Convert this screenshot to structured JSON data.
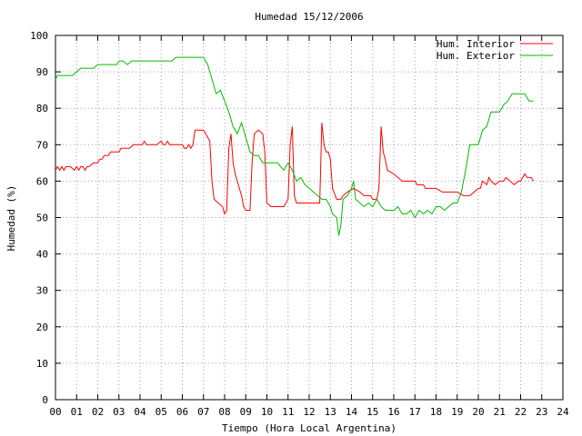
{
  "chart_data": {
    "type": "line",
    "title": "Humedad 15/12/2006",
    "xlabel": "Tiempo (Hora Local Argentina)",
    "ylabel": "Humedad (%)",
    "xlim": [
      0,
      24
    ],
    "ylim": [
      0,
      100
    ],
    "x_ticks": [
      "00",
      "01",
      "02",
      "03",
      "04",
      "05",
      "06",
      "07",
      "08",
      "09",
      "10",
      "11",
      "12",
      "13",
      "14",
      "15",
      "16",
      "17",
      "18",
      "19",
      "20",
      "21",
      "22",
      "23",
      "24"
    ],
    "y_ticks": [
      "0",
      "10",
      "20",
      "30",
      "40",
      "50",
      "60",
      "70",
      "80",
      "90",
      "100"
    ],
    "grid": true,
    "legend_position": "top-right",
    "series": [
      {
        "name": "Hum. Interior",
        "color": "#ff0000",
        "points": [
          [
            0.0,
            63
          ],
          [
            0.1,
            64
          ],
          [
            0.2,
            63
          ],
          [
            0.3,
            64
          ],
          [
            0.4,
            63
          ],
          [
            0.5,
            64
          ],
          [
            0.6,
            64
          ],
          [
            0.7,
            64
          ],
          [
            0.9,
            63
          ],
          [
            1.0,
            64
          ],
          [
            1.1,
            63
          ],
          [
            1.2,
            64
          ],
          [
            1.3,
            64
          ],
          [
            1.4,
            63
          ],
          [
            1.5,
            64
          ],
          [
            1.6,
            64
          ],
          [
            1.8,
            65
          ],
          [
            2.0,
            65
          ],
          [
            2.1,
            66
          ],
          [
            2.2,
            66
          ],
          [
            2.3,
            67
          ],
          [
            2.4,
            67
          ],
          [
            2.5,
            67
          ],
          [
            2.6,
            68
          ],
          [
            2.7,
            68
          ],
          [
            2.9,
            68
          ],
          [
            3.0,
            68
          ],
          [
            3.1,
            69
          ],
          [
            3.2,
            69
          ],
          [
            3.3,
            69
          ],
          [
            3.5,
            69
          ],
          [
            3.7,
            70
          ],
          [
            3.9,
            70
          ],
          [
            4.0,
            70
          ],
          [
            4.1,
            70
          ],
          [
            4.2,
            71
          ],
          [
            4.3,
            70
          ],
          [
            4.4,
            70
          ],
          [
            4.6,
            70
          ],
          [
            4.8,
            70
          ],
          [
            5.0,
            71
          ],
          [
            5.1,
            70
          ],
          [
            5.2,
            70
          ],
          [
            5.3,
            71
          ],
          [
            5.4,
            70
          ],
          [
            5.6,
            70
          ],
          [
            5.8,
            70
          ],
          [
            6.0,
            70
          ],
          [
            6.1,
            69
          ],
          [
            6.2,
            69
          ],
          [
            6.3,
            70
          ],
          [
            6.4,
            69
          ],
          [
            6.5,
            70
          ],
          [
            6.6,
            74
          ],
          [
            7.0,
            74
          ],
          [
            7.1,
            73
          ],
          [
            7.3,
            71
          ],
          [
            7.4,
            60
          ],
          [
            7.5,
            55
          ],
          [
            7.7,
            54
          ],
          [
            7.9,
            53
          ],
          [
            8.0,
            51
          ],
          [
            8.1,
            52
          ],
          [
            8.2,
            69
          ],
          [
            8.3,
            73
          ],
          [
            8.4,
            65
          ],
          [
            8.5,
            62
          ],
          [
            8.6,
            60
          ],
          [
            8.8,
            56
          ],
          [
            8.9,
            53
          ],
          [
            9.0,
            52
          ],
          [
            9.2,
            52
          ],
          [
            9.3,
            65
          ],
          [
            9.4,
            73
          ],
          [
            9.6,
            74
          ],
          [
            9.8,
            73
          ],
          [
            9.9,
            68
          ],
          [
            10.0,
            54
          ],
          [
            10.2,
            53
          ],
          [
            10.4,
            53
          ],
          [
            10.8,
            53
          ],
          [
            11.0,
            55
          ],
          [
            11.1,
            70
          ],
          [
            11.2,
            75
          ],
          [
            11.3,
            56
          ],
          [
            11.4,
            54
          ],
          [
            11.6,
            54
          ],
          [
            12.0,
            54
          ],
          [
            12.4,
            54
          ],
          [
            12.5,
            54
          ],
          [
            12.6,
            76
          ],
          [
            12.7,
            70
          ],
          [
            12.8,
            68
          ],
          [
            12.9,
            68
          ],
          [
            13.0,
            66
          ],
          [
            13.1,
            58
          ],
          [
            13.3,
            55
          ],
          [
            13.5,
            55
          ],
          [
            13.6,
            56
          ],
          [
            13.8,
            57
          ],
          [
            14.1,
            58
          ],
          [
            14.4,
            57
          ],
          [
            14.6,
            56
          ],
          [
            14.9,
            56
          ],
          [
            15.0,
            55
          ],
          [
            15.2,
            55
          ],
          [
            15.3,
            58
          ],
          [
            15.4,
            75
          ],
          [
            15.5,
            68
          ],
          [
            15.6,
            66
          ],
          [
            15.7,
            63
          ],
          [
            16.0,
            62
          ],
          [
            16.2,
            61
          ],
          [
            16.4,
            60
          ],
          [
            17.0,
            60
          ],
          [
            17.1,
            59
          ],
          [
            17.4,
            59
          ],
          [
            17.5,
            58
          ],
          [
            18.0,
            58
          ],
          [
            18.3,
            57
          ],
          [
            19.0,
            57
          ],
          [
            19.3,
            56
          ],
          [
            19.6,
            56
          ],
          [
            19.8,
            57
          ],
          [
            20.0,
            58
          ],
          [
            20.1,
            58
          ],
          [
            20.2,
            60
          ],
          [
            20.4,
            59
          ],
          [
            20.5,
            61
          ],
          [
            20.6,
            60
          ],
          [
            20.8,
            59
          ],
          [
            21.0,
            60
          ],
          [
            21.2,
            60
          ],
          [
            21.3,
            61
          ],
          [
            21.5,
            60
          ],
          [
            21.7,
            59
          ],
          [
            21.9,
            60
          ],
          [
            22.0,
            60
          ],
          [
            22.1,
            61
          ],
          [
            22.2,
            62
          ],
          [
            22.3,
            61
          ],
          [
            22.5,
            61
          ],
          [
            22.6,
            60
          ]
        ]
      },
      {
        "name": "Hum. Exterior",
        "color": "#00bb00",
        "points": [
          [
            0.0,
            88
          ],
          [
            0.1,
            89
          ],
          [
            0.3,
            89
          ],
          [
            0.5,
            89
          ],
          [
            0.8,
            89
          ],
          [
            1.0,
            90
          ],
          [
            1.2,
            91
          ],
          [
            1.5,
            91
          ],
          [
            1.8,
            91
          ],
          [
            2.0,
            92
          ],
          [
            2.3,
            92
          ],
          [
            2.6,
            92
          ],
          [
            2.9,
            92
          ],
          [
            3.0,
            93
          ],
          [
            3.2,
            93
          ],
          [
            3.4,
            92
          ],
          [
            3.6,
            93
          ],
          [
            3.8,
            93
          ],
          [
            4.0,
            93
          ],
          [
            4.5,
            93
          ],
          [
            5.0,
            93
          ],
          [
            5.5,
            93
          ],
          [
            5.7,
            94
          ],
          [
            6.0,
            94
          ],
          [
            6.5,
            94
          ],
          [
            7.0,
            94
          ],
          [
            7.2,
            92
          ],
          [
            7.4,
            88
          ],
          [
            7.6,
            84
          ],
          [
            7.8,
            85
          ],
          [
            8.0,
            82
          ],
          [
            8.2,
            79
          ],
          [
            8.4,
            75
          ],
          [
            8.6,
            73
          ],
          [
            8.8,
            76
          ],
          [
            9.0,
            72
          ],
          [
            9.1,
            70
          ],
          [
            9.2,
            68
          ],
          [
            9.4,
            67
          ],
          [
            9.6,
            67
          ],
          [
            9.8,
            65
          ],
          [
            10.0,
            65
          ],
          [
            10.2,
            65
          ],
          [
            10.5,
            65
          ],
          [
            10.8,
            63
          ],
          [
            11.0,
            65
          ],
          [
            11.2,
            63
          ],
          [
            11.4,
            60
          ],
          [
            11.6,
            61
          ],
          [
            11.8,
            59
          ],
          [
            12.0,
            58
          ],
          [
            12.2,
            57
          ],
          [
            12.4,
            56
          ],
          [
            12.6,
            55
          ],
          [
            12.8,
            55
          ],
          [
            13.0,
            53
          ],
          [
            13.1,
            51
          ],
          [
            13.3,
            50
          ],
          [
            13.4,
            45
          ],
          [
            13.5,
            48
          ],
          [
            13.6,
            55
          ],
          [
            13.8,
            56
          ],
          [
            14.0,
            58
          ],
          [
            14.1,
            60
          ],
          [
            14.2,
            55
          ],
          [
            14.4,
            54
          ],
          [
            14.6,
            53
          ],
          [
            14.8,
            54
          ],
          [
            15.0,
            53
          ],
          [
            15.2,
            55
          ],
          [
            15.4,
            53
          ],
          [
            15.6,
            52
          ],
          [
            15.8,
            52
          ],
          [
            16.0,
            52
          ],
          [
            16.2,
            53
          ],
          [
            16.4,
            51
          ],
          [
            16.6,
            51
          ],
          [
            16.8,
            52
          ],
          [
            17.0,
            50
          ],
          [
            17.2,
            52
          ],
          [
            17.4,
            51
          ],
          [
            17.6,
            52
          ],
          [
            17.8,
            51
          ],
          [
            18.0,
            53
          ],
          [
            18.2,
            53
          ],
          [
            18.4,
            52
          ],
          [
            18.6,
            53
          ],
          [
            18.8,
            54
          ],
          [
            19.0,
            54
          ],
          [
            19.2,
            57
          ],
          [
            19.4,
            63
          ],
          [
            19.6,
            70
          ],
          [
            20.0,
            70
          ],
          [
            20.2,
            74
          ],
          [
            20.4,
            75
          ],
          [
            20.6,
            79
          ],
          [
            21.0,
            79
          ],
          [
            21.2,
            81
          ],
          [
            21.4,
            82
          ],
          [
            21.6,
            84
          ],
          [
            22.0,
            84
          ],
          [
            22.2,
            84
          ],
          [
            22.4,
            82
          ],
          [
            22.6,
            82
          ]
        ]
      }
    ]
  }
}
